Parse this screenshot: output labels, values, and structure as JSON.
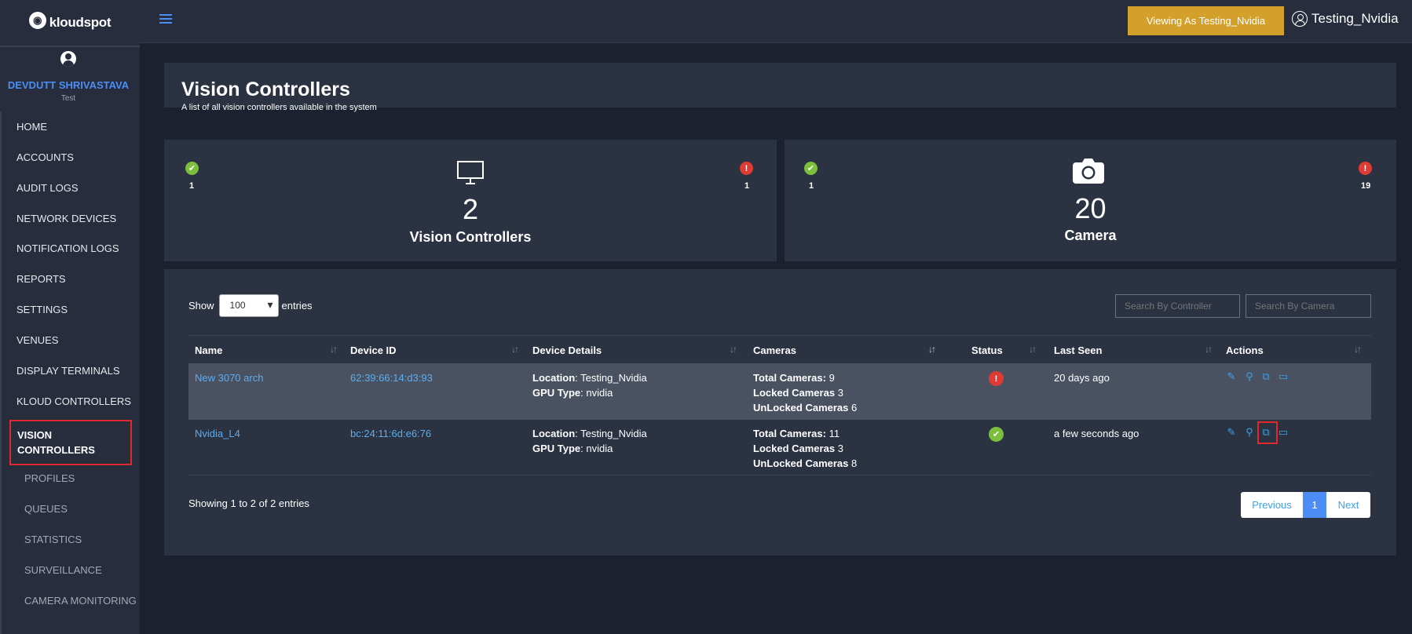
{
  "brand": {
    "logo_text": "kloudspot"
  },
  "topbar": {
    "viewing_label": "Viewing As Testing_Nvidia",
    "user_name": "Testing_Nvidia"
  },
  "sidebar": {
    "user_name": "DEVDUTT SHRIVASTAVA",
    "user_role": "Test",
    "items": [
      "HOME",
      "ACCOUNTS",
      "AUDIT LOGS",
      "NETWORK DEVICES",
      "NOTIFICATION LOGS",
      "REPORTS",
      "SETTINGS",
      "VENUES",
      "DISPLAY TERMINALS",
      "KLOUD CONTROLLERS"
    ],
    "active": "VISION CONTROLLERS",
    "subitems": [
      "PROFILES",
      "QUEUES",
      "STATISTICS",
      "SURVEILLANCE",
      "CAMERA MONITORING"
    ]
  },
  "page": {
    "title": "Vision Controllers",
    "subtitle": "A list of all vision controllers available in the system"
  },
  "cards": [
    {
      "ok": "1",
      "err": "1",
      "value": "2",
      "label": "Vision Controllers",
      "icon": "monitor-icon"
    },
    {
      "ok": "1",
      "err": "19",
      "value": "20",
      "label": "Camera",
      "icon": "camera-icon"
    }
  ],
  "table_controls": {
    "show_label": "Show",
    "entries_label": "entries",
    "page_size": "100",
    "search_controller": "Search By Controller",
    "search_camera": "Search By Camera"
  },
  "table": {
    "columns": [
      "Name",
      "Device ID",
      "Device Details",
      "Cameras",
      "Status",
      "Last Seen",
      "Actions"
    ],
    "rows": [
      {
        "name": "New 3070 arch",
        "device_id": "62:39:66:14:d3:93",
        "location_key": "Location",
        "location": "Testing_Nvidia",
        "gpu_key": "GPU Type",
        "gpu": "nvidia",
        "total_key": "Total Cameras:",
        "total": "9",
        "locked_key": "Locked Cameras",
        "locked": "3",
        "unlocked_key": "UnLocked Cameras",
        "unlocked": "6",
        "status": "error",
        "last_seen": "20 days ago"
      },
      {
        "name": "Nvidia_L4",
        "device_id": "bc:24:11:6d:e6:76",
        "location_key": "Location",
        "location": "Testing_Nvidia",
        "gpu_key": "GPU Type",
        "gpu": "nvidia",
        "total_key": "Total Cameras:",
        "total": "11",
        "locked_key": "Locked Cameras",
        "locked": "3",
        "unlocked_key": "UnLocked Cameras",
        "unlocked": "8",
        "status": "ok",
        "last_seen": "a few seconds ago"
      }
    ]
  },
  "footer": {
    "showing": "Showing 1 to 2 of 2 entries",
    "prev": "Previous",
    "page": "1",
    "next": "Next"
  },
  "colors": {
    "accent": "#4c8ef5",
    "gold": "#d4a02c",
    "ok": "#7bbf3c",
    "error": "#dd3b34",
    "highlight": "#e02a2a"
  }
}
